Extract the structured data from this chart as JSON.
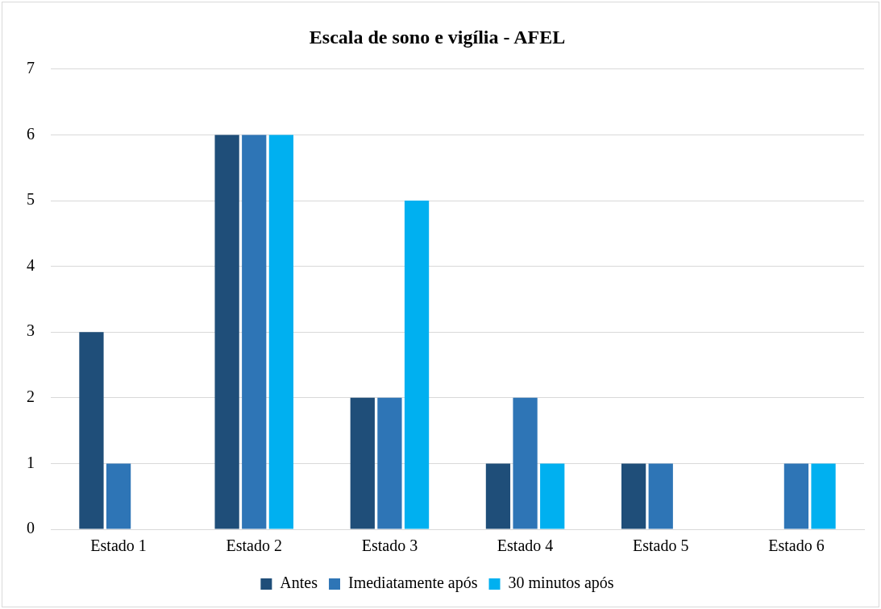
{
  "chart_data": {
    "type": "bar",
    "title": "Escala de sono e vigília - AFEL",
    "categories": [
      "Estado 1",
      "Estado 2",
      "Estado 3",
      "Estado 4",
      "Estado 5",
      "Estado 6"
    ],
    "series": [
      {
        "name": "Antes",
        "color": "#1f4e79",
        "values": [
          3,
          6,
          2,
          1,
          1,
          0
        ]
      },
      {
        "name": "Imediatamente após",
        "color": "#2e75b6",
        "values": [
          1,
          6,
          2,
          2,
          1,
          1
        ]
      },
      {
        "name": "30 minutos após",
        "color": "#00b0f0",
        "values": [
          0,
          6,
          5,
          1,
          0,
          1
        ]
      }
    ],
    "ylim": [
      0,
      7
    ],
    "yticks": [
      0,
      1,
      2,
      3,
      4,
      5,
      6,
      7
    ],
    "grid": "y",
    "legend": "bottom"
  }
}
